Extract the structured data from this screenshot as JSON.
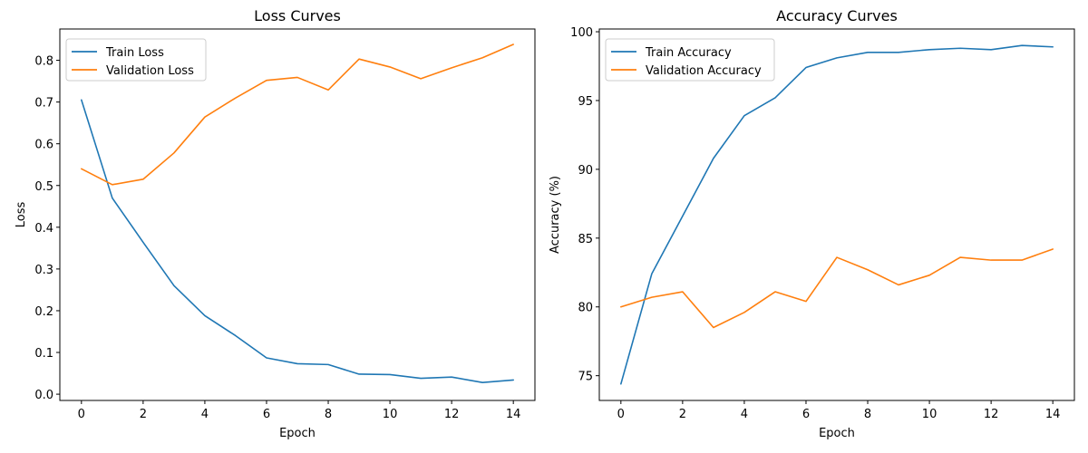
{
  "chart_data": [
    {
      "type": "line",
      "title": "Loss Curves",
      "xlabel": "Epoch",
      "ylabel": "Loss",
      "x": [
        0,
        1,
        2,
        3,
        4,
        5,
        6,
        7,
        8,
        9,
        10,
        11,
        12,
        13,
        14
      ],
      "xlim": [
        -0.7,
        14.7
      ],
      "ylim": [
        -0.015,
        0.875
      ],
      "xticks": [
        0,
        2,
        4,
        6,
        8,
        10,
        12,
        14
      ],
      "yticks": [
        0.0,
        0.1,
        0.2,
        0.3,
        0.4,
        0.5,
        0.6,
        0.7,
        0.8
      ],
      "ytick_labels": [
        "0.0",
        "0.1",
        "0.2",
        "0.3",
        "0.4",
        "0.5",
        "0.6",
        "0.7",
        "0.8"
      ],
      "legend_position": "top-left",
      "grid": false,
      "series": [
        {
          "name": "Train Loss",
          "color": "#1f77b4",
          "values": [
            0.705,
            0.47,
            0.364,
            0.26,
            0.188,
            0.14,
            0.087,
            0.073,
            0.071,
            0.048,
            0.047,
            0.038,
            0.041,
            0.028,
            0.034
          ]
        },
        {
          "name": "Validation Loss",
          "color": "#ff7f0e",
          "values": [
            0.54,
            0.502,
            0.515,
            0.578,
            0.664,
            0.71,
            0.752,
            0.759,
            0.729,
            0.803,
            0.784,
            0.756,
            0.782,
            0.806,
            0.838
          ]
        }
      ]
    },
    {
      "type": "line",
      "title": "Accuracy Curves",
      "xlabel": "Epoch",
      "ylabel": "Accuracy (%)",
      "x": [
        0,
        1,
        2,
        3,
        4,
        5,
        6,
        7,
        8,
        9,
        10,
        11,
        12,
        13,
        14
      ],
      "xlim": [
        -0.7,
        14.7
      ],
      "ylim": [
        73.2,
        100.2
      ],
      "xticks": [
        0,
        2,
        4,
        6,
        8,
        10,
        12,
        14
      ],
      "yticks": [
        75,
        80,
        85,
        90,
        95,
        100
      ],
      "ytick_labels": [
        "75",
        "80",
        "85",
        "90",
        "95",
        "100"
      ],
      "legend_position": "top-left",
      "grid": false,
      "series": [
        {
          "name": "Train Accuracy",
          "color": "#1f77b4",
          "values": [
            74.4,
            82.4,
            86.6,
            90.8,
            93.9,
            95.2,
            97.4,
            98.1,
            98.5,
            98.5,
            98.7,
            98.8,
            98.7,
            99.0,
            98.9
          ]
        },
        {
          "name": "Validation Accuracy",
          "color": "#ff7f0e",
          "values": [
            80.0,
            80.7,
            81.1,
            78.5,
            79.6,
            81.1,
            80.4,
            83.6,
            82.7,
            81.6,
            82.3,
            83.6,
            83.4,
            83.4,
            84.2
          ]
        }
      ]
    }
  ]
}
